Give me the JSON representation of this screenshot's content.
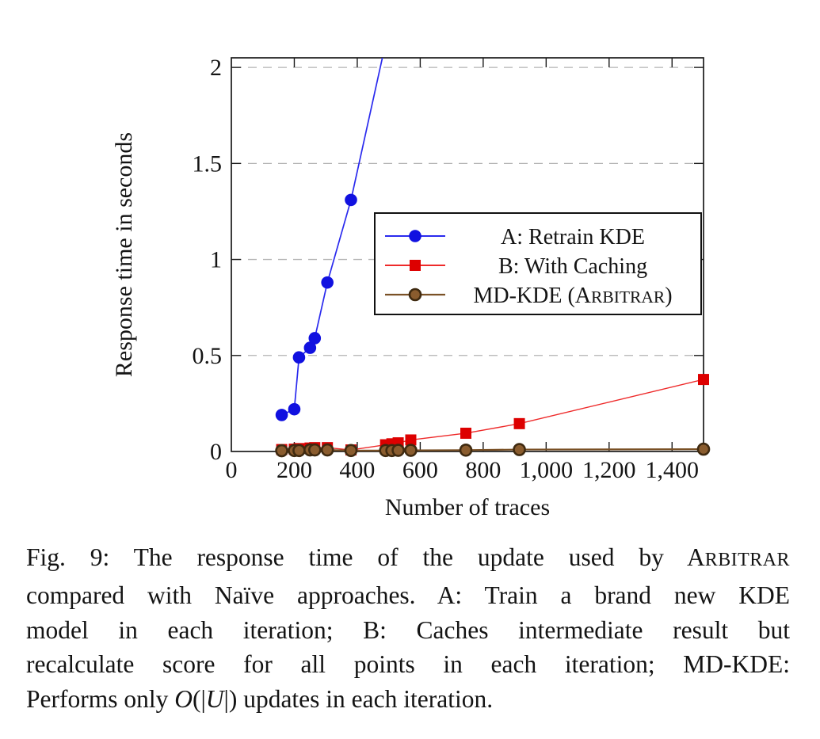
{
  "page": {
    "background": "#ffffff"
  },
  "figure": {
    "caption": {
      "lines": [
        {
          "justify": true,
          "segments": [
            {
              "t": "Fig. 9: The response time of the update used by "
            },
            {
              "t": "A"
            },
            {
              "t": "rbitrar",
              "sc": true
            }
          ]
        },
        {
          "justify": true,
          "segments": [
            {
              "t": "compared with Naïve approaches. A: Train a brand new KDE"
            }
          ]
        },
        {
          "justify": true,
          "segments": [
            {
              "t": "model in each iteration; B: Caches intermediate result but"
            }
          ]
        },
        {
          "justify": true,
          "segments": [
            {
              "t": "recalculate score for all points in each iteration; MD-KDE:"
            }
          ]
        },
        {
          "justify": false,
          "segments": [
            {
              "t": "Performs only "
            },
            {
              "t": "O",
              "it": true
            },
            {
              "t": "(|"
            },
            {
              "t": "U",
              "it": true
            },
            {
              "t": "|) updates in each iteration."
            }
          ]
        }
      ]
    }
  },
  "chart_data": {
    "type": "line",
    "title": "",
    "xlabel": "Number of traces",
    "ylabel": "Response time in seconds",
    "xlim": [
      0,
      1500
    ],
    "ylim": [
      0,
      2.05
    ],
    "x_ticks": [
      0,
      200,
      400,
      600,
      800,
      1000,
      1200,
      1400
    ],
    "x_tick_labels": [
      "0",
      "200",
      "400",
      "600",
      "800",
      "1,000",
      "1,200",
      "1,400"
    ],
    "y_ticks": [
      0,
      0.5,
      1,
      1.5,
      2
    ],
    "y_tick_labels": [
      "0",
      "0.5",
      "1",
      "1.5",
      "2"
    ],
    "grid": {
      "horizontal": true,
      "style": "dashed",
      "color": "#b3b3b3"
    },
    "legend_position": "inside-upper-right",
    "axis_color": "#1a1a1a",
    "series": [
      {
        "name": "A: Retrain KDE",
        "label_parts": [
          {
            "t": "A: Retrain KDE"
          }
        ],
        "color": "#1111e0",
        "line_color": "#2a2aee",
        "line_width": 1.7,
        "marker": "circle",
        "x": [
          160,
          200,
          215,
          250,
          265,
          305,
          380,
          500
        ],
        "y": [
          0.19,
          0.22,
          0.49,
          0.54,
          0.59,
          0.88,
          1.31,
          2.2
        ],
        "note": "last point lies above the visible axis range (line exits plot top near x=490)"
      },
      {
        "name": "B: With Caching",
        "label_parts": [
          {
            "t": "B: With Caching"
          }
        ],
        "color": "#dd0000",
        "line_color": "#ee2a2a",
        "line_width": 1.4,
        "marker": "square",
        "x": [
          160,
          200,
          215,
          250,
          265,
          305,
          380,
          490,
          510,
          530,
          570,
          745,
          915,
          1500
        ],
        "y": [
          0.01,
          0.012,
          0.015,
          0.018,
          0.02,
          0.02,
          0.008,
          0.035,
          0.04,
          0.045,
          0.06,
          0.095,
          0.145,
          0.375
        ]
      },
      {
        "name": "MD-KDE (Arbitrar)",
        "label_parts": [
          {
            "t": "MD-KDE ("
          },
          {
            "t": "A"
          },
          {
            "t": "rbitrar",
            "sc": true
          },
          {
            "t": ")"
          }
        ],
        "color": "#8a5c2e",
        "line_color": "#7a5126",
        "line_width": 2.2,
        "marker": "circle",
        "marker_stroke": "#3f2a10",
        "x": [
          160,
          200,
          215,
          250,
          265,
          305,
          380,
          490,
          510,
          530,
          570,
          745,
          915,
          1500
        ],
        "y": [
          0.004,
          0.005,
          0.005,
          0.008,
          0.008,
          0.008,
          0.005,
          0.005,
          0.005,
          0.006,
          0.006,
          0.007,
          0.01,
          0.012
        ]
      }
    ]
  }
}
